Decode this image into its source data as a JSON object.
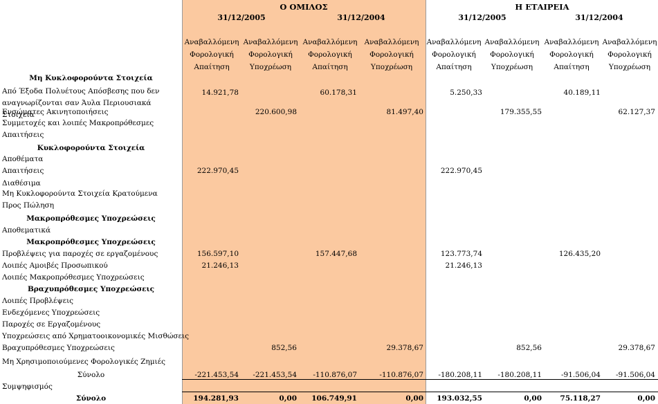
{
  "groups": {
    "group_title": "Ο ΟΜΙΛΟΣ",
    "company_title": "Η ΕΤΑΙΡΕΙΑ"
  },
  "dates": [
    "31/12/2005",
    "31/12/2004",
    "31/12/2005",
    "31/12/2004"
  ],
  "column_headers": [
    "Αναβαλλόμενη Φορολογική Απαίτηση",
    "Αναβαλλόμενη Φορολογική Υποχρέωση",
    "Αναβαλλόμενη Φορολογική Απαίτηση",
    "Αναβαλλόμενη Φορολογική Υποχρέωση",
    "Αναβαλλόμενη Φορολογική Απαίτηση",
    "Αναβαλλόμενη Φορολογική Υποχρέωση",
    "Αναβαλλόμενη Φορολογική Απαίτηση",
    "Αναβαλλόμενη Φορολογική Υποχρέωση"
  ],
  "rows": [
    {
      "label": "Μη Κυκλοφορούντα Στοιχεία",
      "type": "section",
      "values": [
        "",
        "",
        "",
        "",
        "",
        "",
        "",
        ""
      ]
    },
    {
      "label": "Από Έξοδα Πολυέτους Απόσβεσης που δεν αναγνωρίζονται σαν Άυλα Περιουσιακά Στοιχεία",
      "type": "item2",
      "values": [
        "14.921,78",
        "",
        "60.178,31",
        "",
        "5.250,33",
        "",
        "40.189,11",
        ""
      ]
    },
    {
      "label": "Ενσώματες Ακινητοποιήσεις",
      "type": "item",
      "values": [
        "",
        "220.600,98",
        "",
        "81.497,40",
        "",
        "179.355,55",
        "",
        "62.127,37"
      ]
    },
    {
      "label": "Συμμετοχές και λοιπές Μακροπρόθεσμες Απαιτήσεις",
      "type": "item2",
      "values": [
        "",
        "",
        "",
        "",
        "",
        "",
        "",
        ""
      ]
    },
    {
      "label": "Κυκλοφορούντα Στοιχεία",
      "type": "section",
      "values": [
        "",
        "",
        "",
        "",
        "",
        "",
        "",
        ""
      ]
    },
    {
      "label": "Αποθέματα",
      "type": "item",
      "values": [
        "",
        "",
        "",
        "",
        "",
        "",
        "",
        ""
      ]
    },
    {
      "label": "Απαιτήσεις",
      "type": "item",
      "values": [
        "222.970,45",
        "",
        "",
        "",
        "222.970,45",
        "",
        "",
        ""
      ]
    },
    {
      "label": "Διαθέσιμα",
      "type": "item",
      "values": [
        "",
        "",
        "",
        "",
        "",
        "",
        "",
        ""
      ]
    },
    {
      "label": "Μη Κυκλοφορούντα Στοιχεία Κρατούμενα Προς Πώληση",
      "type": "item2",
      "values": [
        "",
        "",
        "",
        "",
        "",
        "",
        "",
        ""
      ]
    },
    {
      "label": "Μακροπρόθεσμες Υποχρεώσεις",
      "type": "section",
      "values": [
        "",
        "",
        "",
        "",
        "",
        "",
        "",
        ""
      ]
    },
    {
      "label": "Αποθεματικά",
      "type": "item",
      "values": [
        "",
        "",
        "",
        "",
        "",
        "",
        "",
        ""
      ]
    },
    {
      "label": "Μακροπρόθεσμες Υποχρεώσεις",
      "type": "section",
      "values": [
        "",
        "",
        "",
        "",
        "",
        "",
        "",
        ""
      ]
    },
    {
      "label": "Προβλέψεις για παροχές σε εργαζομένους",
      "type": "item",
      "values": [
        "156.597,10",
        "",
        "157.447,68",
        "",
        "123.773,74",
        "",
        "126.435,20",
        ""
      ]
    },
    {
      "label": "Λοιπές Αμοιβές Προσωπικού",
      "type": "item",
      "values": [
        "21.246,13",
        "",
        "",
        "",
        "21.246,13",
        "",
        "",
        ""
      ]
    },
    {
      "label": "Λοιπές Μακροπρόθεσμες Υποχρεώσεις",
      "type": "item",
      "values": [
        "",
        "",
        "",
        "",
        "",
        "",
        "",
        ""
      ]
    },
    {
      "label": "Βραχυπρόθεσμες Υποχρεώσεις",
      "type": "section",
      "values": [
        "",
        "",
        "",
        "",
        "",
        "",
        "",
        ""
      ]
    },
    {
      "label": "Λοιπές Προβλέψεις",
      "type": "item",
      "values": [
        "",
        "",
        "",
        "",
        "",
        "",
        "",
        ""
      ]
    },
    {
      "label": "Ενδεχόμενες Υποχρεώσεις",
      "type": "item",
      "values": [
        "",
        "",
        "",
        "",
        "",
        "",
        "",
        ""
      ]
    },
    {
      "label": "Παροχές σε Εργαζομένους",
      "type": "item",
      "values": [
        "",
        "",
        "",
        "",
        "",
        "",
        "",
        ""
      ]
    },
    {
      "label": "Υποχρεώσεις από Χρηματοοικονομικές Μισθώσεις",
      "type": "item",
      "values": [
        "",
        "",
        "",
        "",
        "",
        "",
        "",
        ""
      ]
    },
    {
      "label": "Βραχυπρόθεσμες Υποχρεώσεις",
      "type": "item",
      "values": [
        "",
        "852,56",
        "",
        "29.378,67",
        "",
        "852,56",
        "",
        "29.378,67"
      ]
    },
    {
      "label": "Μη Χρησιμοποιούμενες Φορολογικές Ζημιές",
      "type": "item",
      "values": [
        "",
        "",
        "",
        "",
        "",
        "",
        "",
        ""
      ]
    },
    {
      "label": "Σύνολο",
      "type": "subtotal",
      "values": [
        "-221.453,54",
        "-221.453,54",
        "-110.876,07",
        "-110.876,07",
        "-180.208,11",
        "-180.208,11",
        "-91.506,04",
        "-91.506,04"
      ]
    },
    {
      "label": "Συμψηφισμός",
      "type": "item",
      "values": [
        "",
        "",
        "",
        "",
        "",
        "",
        "",
        ""
      ]
    },
    {
      "label": "Σύνολο",
      "type": "total",
      "values": [
        "194.281,93",
        "0,00",
        "106.749,91",
        "0,00",
        "193.032,55",
        "0,00",
        "75.118,27",
        "0,00"
      ]
    }
  ]
}
